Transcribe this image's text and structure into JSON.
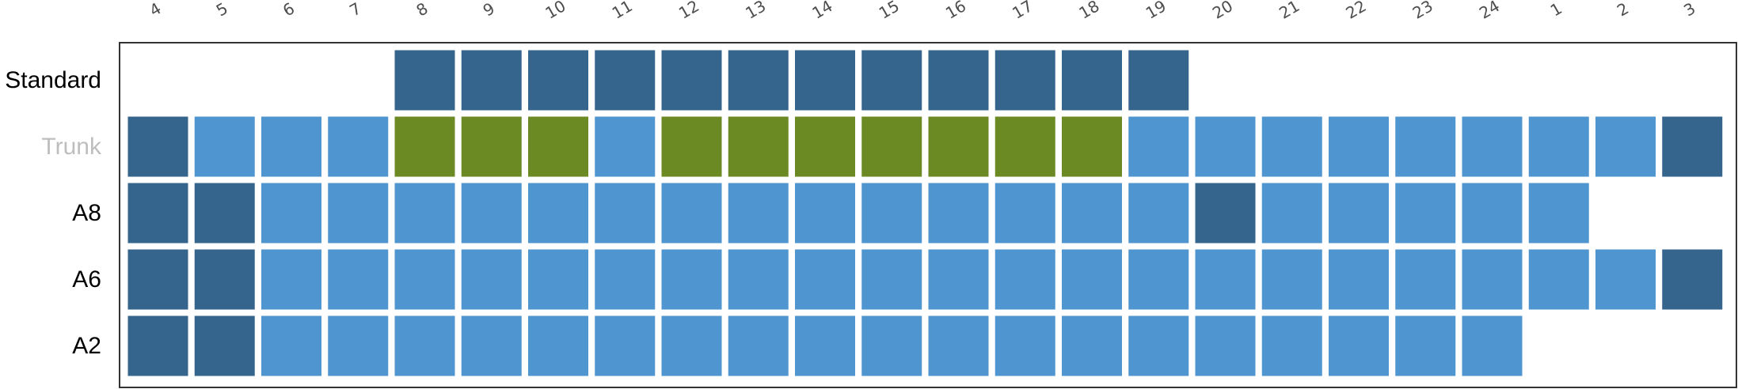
{
  "chart_data": {
    "type": "heatmap",
    "title": "",
    "xlabel": "",
    "ylabel": "",
    "columns": [
      "4",
      "5",
      "6",
      "7",
      "8",
      "9",
      "10",
      "11",
      "12",
      "13",
      "14",
      "15",
      "16",
      "17",
      "18",
      "19",
      "20",
      "21",
      "22",
      "23",
      "24",
      "1",
      "2",
      "3"
    ],
    "rows": [
      {
        "label": "Standard",
        "label_color": "#000000",
        "cells": [
          "",
          "",
          "",
          "",
          "dark",
          "dark",
          "dark",
          "dark",
          "dark",
          "dark",
          "dark",
          "dark",
          "dark",
          "dark",
          "dark",
          "dark",
          "",
          "",
          "",
          "",
          "",
          "",
          "",
          ""
        ]
      },
      {
        "label": "Trunk",
        "label_color": "#bebebe",
        "cells": [
          "dark",
          "light",
          "light",
          "light",
          "green",
          "green",
          "green",
          "light",
          "green",
          "green",
          "green",
          "green",
          "green",
          "green",
          "green",
          "light",
          "light",
          "light",
          "light",
          "light",
          "light",
          "light",
          "light",
          "dark"
        ]
      },
      {
        "label": "A8",
        "label_color": "#000000",
        "cells": [
          "dark",
          "dark",
          "light",
          "light",
          "light",
          "light",
          "light",
          "light",
          "light",
          "light",
          "light",
          "light",
          "light",
          "light",
          "light",
          "light",
          "dark",
          "light",
          "light",
          "light",
          "light",
          "light",
          "",
          ""
        ]
      },
      {
        "label": "A6",
        "label_color": "#000000",
        "cells": [
          "dark",
          "dark",
          "light",
          "light",
          "light",
          "light",
          "light",
          "light",
          "light",
          "light",
          "light",
          "light",
          "light",
          "light",
          "light",
          "light",
          "light",
          "light",
          "light",
          "light",
          "light",
          "light",
          "light",
          "dark"
        ]
      },
      {
        "label": "A2",
        "label_color": "#000000",
        "cells": [
          "dark",
          "dark",
          "light",
          "light",
          "light",
          "light",
          "light",
          "light",
          "light",
          "light",
          "light",
          "light",
          "light",
          "light",
          "light",
          "light",
          "light",
          "light",
          "light",
          "light",
          "light",
          "",
          "",
          ""
        ]
      }
    ],
    "colors": {
      "dark": "#35658c",
      "light": "#4f95cf",
      "green": "#6b8a24",
      "border": "#333333"
    },
    "grid": false,
    "legend": "none"
  }
}
